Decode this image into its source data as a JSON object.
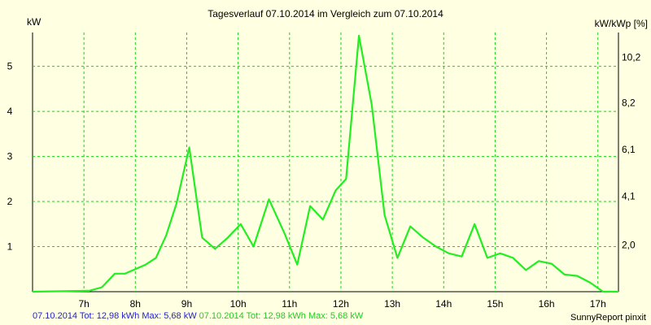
{
  "chart_data": {
    "type": "line",
    "title": "Tagesverlauf 07.10.2014 im Vergleich zum 07.10.2014",
    "ylabel_left": "kW",
    "ylabel_right": "kW/kWp [%]",
    "x_ticks": [
      "7h",
      "8h",
      "9h",
      "10h",
      "11h",
      "12h",
      "13h",
      "14h",
      "15h",
      "16h",
      "17h"
    ],
    "xlim": [
      6.0,
      17.4
    ],
    "ylim": [
      0,
      5.75
    ],
    "y_ticks_left": [
      "1",
      "2",
      "3",
      "4",
      "5"
    ],
    "y_ticks_right": [
      {
        "value": 1.04,
        "label": "2,0"
      },
      {
        "value": 2.12,
        "label": "4,1"
      },
      {
        "value": 3.15,
        "label": "6,1"
      },
      {
        "value": 4.19,
        "label": "8,2"
      },
      {
        "value": 5.2,
        "label": "10,2"
      }
    ],
    "grid": true,
    "series": [
      {
        "color": "#22ee22",
        "x": [
          6.0,
          7.1,
          7.35,
          7.6,
          7.8,
          8.0,
          8.2,
          8.4,
          8.6,
          8.8,
          9.05,
          9.3,
          9.55,
          9.8,
          10.05,
          10.3,
          10.6,
          10.9,
          11.15,
          11.4,
          11.65,
          11.9,
          12.1,
          12.35,
          12.6,
          12.85,
          13.1,
          13.35,
          13.6,
          13.85,
          14.1,
          14.35,
          14.6,
          14.85,
          15.1,
          15.35,
          15.6,
          15.85,
          16.1,
          16.35,
          16.6,
          16.85,
          17.1,
          17.4
        ],
        "y": [
          0.0,
          0.02,
          0.1,
          0.4,
          0.4,
          0.5,
          0.6,
          0.75,
          1.25,
          1.95,
          3.2,
          1.2,
          0.95,
          1.2,
          1.5,
          1.0,
          2.05,
          1.3,
          0.6,
          1.9,
          1.6,
          2.25,
          2.5,
          5.68,
          4.15,
          1.7,
          0.75,
          1.45,
          1.2,
          1.0,
          0.85,
          0.78,
          1.5,
          0.75,
          0.85,
          0.75,
          0.48,
          0.68,
          0.62,
          0.38,
          0.35,
          0.2,
          0.0,
          0.0
        ]
      }
    ]
  },
  "footer": {
    "blue": "07.10.2014 Tot: 12,98 kWh Max: 5,68 kW",
    "green": "07.10.2014 Tot: 12,98 kWh Max: 5,68 kW",
    "credit": "SunnyReport pinxit"
  }
}
